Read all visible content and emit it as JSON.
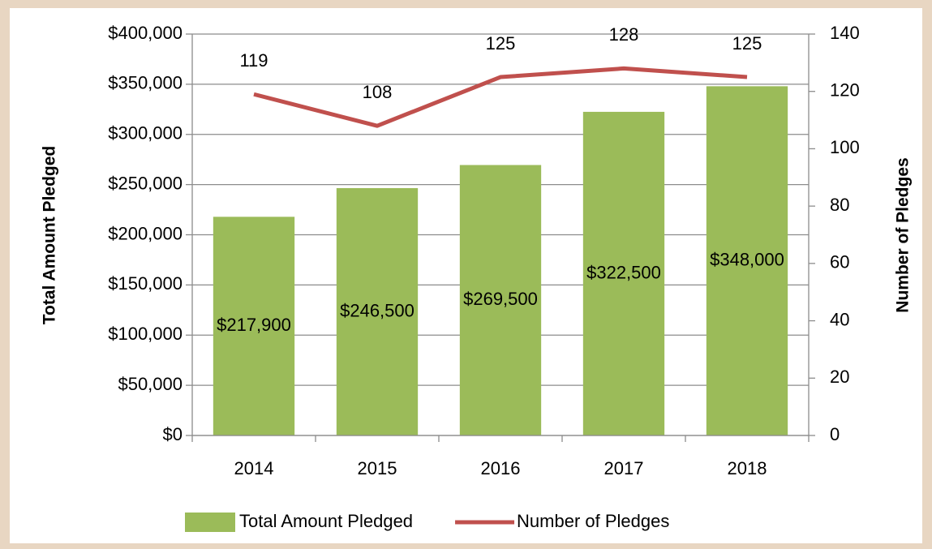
{
  "chart_data": {
    "type": "bar",
    "categories": [
      "2014",
      "2015",
      "2016",
      "2017",
      "2018"
    ],
    "series": [
      {
        "name": "Total Amount Pledged",
        "type": "bar",
        "color": "#9bbb59",
        "axis": "y",
        "values": [
          217900,
          246500,
          269500,
          322500,
          348000
        ],
        "value_labels": [
          "$217,900",
          "$246,500",
          "$269,500",
          "$322,500",
          "$348,000"
        ]
      },
      {
        "name": "Number of Pledges",
        "type": "line",
        "color": "#c0504d",
        "axis": "y2",
        "values": [
          119,
          108,
          125,
          128,
          125
        ]
      }
    ],
    "ylabel": "Total Amount Pledged",
    "y2label": "Number of Pledges",
    "ylim": [
      0,
      400000
    ],
    "yticks": [
      {
        "value": 0,
        "label": "$0"
      },
      {
        "value": 50000,
        "label": "$50,000"
      },
      {
        "value": 100000,
        "label": "$100,000"
      },
      {
        "value": 150000,
        "label": "$150,000"
      },
      {
        "value": 200000,
        "label": "$200,000"
      },
      {
        "value": 250000,
        "label": "$250,000"
      },
      {
        "value": 300000,
        "label": "$300,000"
      },
      {
        "value": 350000,
        "label": "$350,000"
      },
      {
        "value": 400000,
        "label": "$400,000"
      }
    ],
    "y2lim": [
      0,
      140
    ],
    "y2ticks": [
      0,
      20,
      40,
      60,
      80,
      100,
      120,
      140
    ],
    "grid": true,
    "legend": "bottom"
  }
}
